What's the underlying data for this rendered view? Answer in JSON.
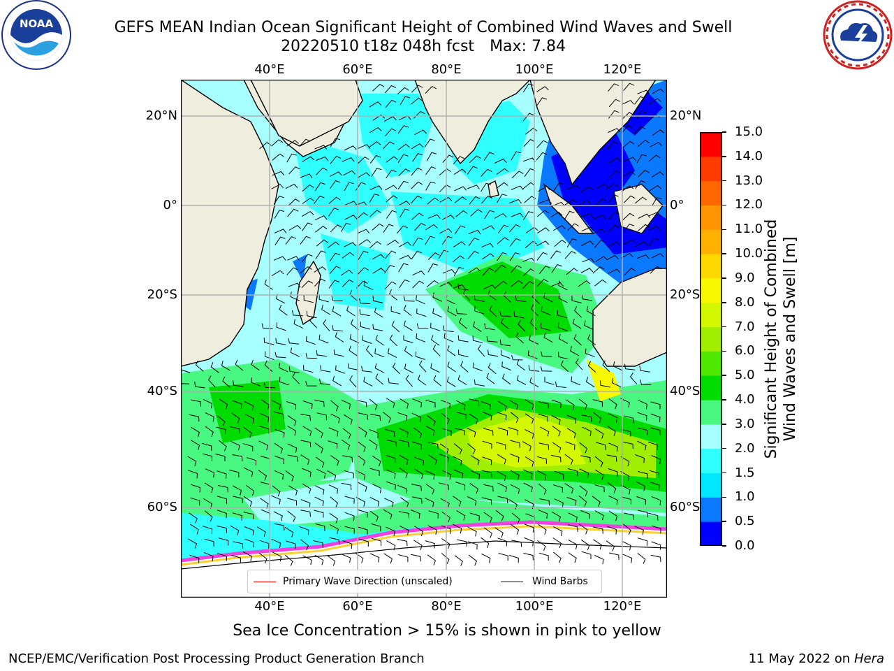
{
  "title": {
    "line1": "GEFS MEAN Indian Ocean Significant Height of Combined Wind Waves and Swell",
    "line2_run": "20220510 t18z 048h fcst",
    "line2_max": "Max: 7.84"
  },
  "map": {
    "lon_ticks": [
      "40°E",
      "60°E",
      "80°E",
      "100°E",
      "120°E"
    ],
    "lat_ticks": [
      "20°N",
      "0°",
      "20°S",
      "40°S",
      "60°S"
    ],
    "lon_values": [
      40,
      60,
      80,
      100,
      120
    ],
    "lat_values": [
      20,
      0,
      -20,
      -40,
      -60
    ],
    "colors": {
      "land": "#efedde",
      "grid": "#b0b0b0",
      "ice_white": "#ffffff",
      "ice_pink": "#f040e0",
      "ice_yellow": "#f8d030"
    }
  },
  "colorbar": {
    "label_line1": "Significant Height of Combined",
    "label_line2": "Wind Waves and Swell [m]",
    "ticks": [
      "0.0",
      "0.5",
      "1.0",
      "1.5",
      "2.0",
      "3.0",
      "4.0",
      "5.0",
      "6.0",
      "7.0",
      "8.0",
      "9.0",
      "10.0",
      "11.0",
      "12.0",
      "13.0",
      "14.0",
      "15.0"
    ],
    "colors": [
      "#0000ff",
      "#0a78ff",
      "#00e8ff",
      "#30ffff",
      "#a8ffff",
      "#48f880",
      "#00dc00",
      "#50e800",
      "#a0ee00",
      "#d4f800",
      "#f8f800",
      "#ffd800",
      "#ffb000",
      "#ff9400",
      "#ff6800",
      "#ff3c00",
      "#ff0000"
    ]
  },
  "legend": {
    "wave_direction": "Primary Wave Direction (unscaled)",
    "wind_barbs": "Wind Barbs",
    "wave_color": "#ff0000",
    "barb_color": "#000000"
  },
  "subtitle": "Sea Ice Concentration > 15% is shown in pink to yellow",
  "footer": {
    "left": "NCEP/EMC/Verification Post Processing Product Generation Branch",
    "date": "11 May 2022 on",
    "host": "Hera"
  },
  "logos": {
    "noaa_icon": "noaa-logo",
    "noaa_text": "NOAA",
    "nws_icon": "nws-logo"
  }
}
